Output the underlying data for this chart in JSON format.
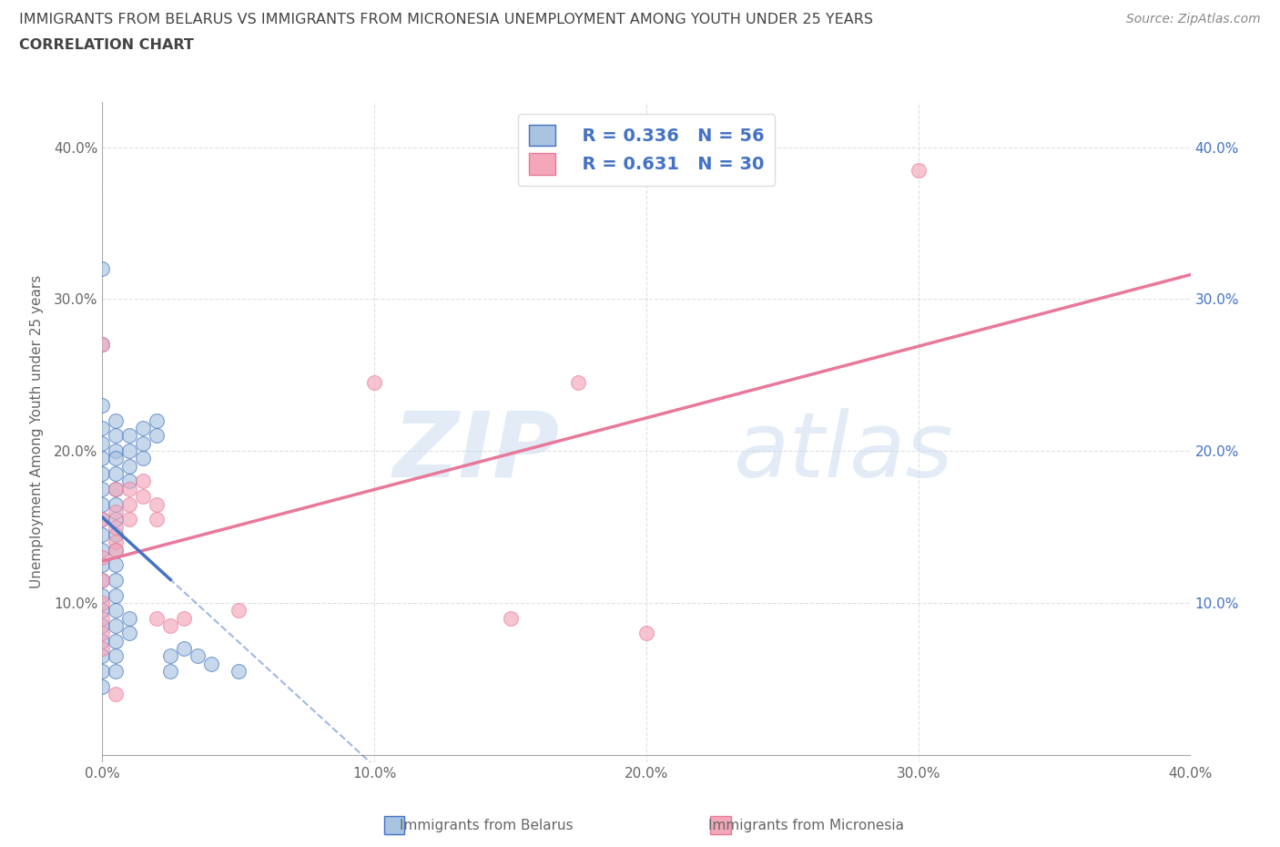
{
  "title_line1": "IMMIGRANTS FROM BELARUS VS IMMIGRANTS FROM MICRONESIA UNEMPLOYMENT AMONG YOUTH UNDER 25 YEARS",
  "title_line2": "CORRELATION CHART",
  "source": "Source: ZipAtlas.com",
  "ylabel": "Unemployment Among Youth under 25 years",
  "xlim": [
    0.0,
    0.4
  ],
  "ylim": [
    -0.005,
    0.43
  ],
  "xticks": [
    0.0,
    0.1,
    0.2,
    0.3,
    0.4
  ],
  "yticks": [
    0.0,
    0.1,
    0.2,
    0.3,
    0.4
  ],
  "xticklabels": [
    "0.0%",
    "10.0%",
    "20.0%",
    "30.0%",
    "40.0%"
  ],
  "yticklabels": [
    "",
    "10.0%",
    "20.0%",
    "30.0%",
    "40.0%"
  ],
  "right_yticklabels": [
    "",
    "10.0%",
    "20.0%",
    "30.0%",
    "40.0%"
  ],
  "belarus_color": "#a8c4e0",
  "micronesia_color": "#f4a7b9",
  "belarus_edge_color": "#4472c4",
  "micronesia_edge_color": "#e8799a",
  "belarus_line_color": "#4472c4",
  "micronesia_line_color": "#e8799a",
  "title_color": "#444444",
  "axis_color": "#666666",
  "right_axis_color": "#4472c4",
  "legend_text_color": "#4472c4",
  "legend_label_belarus": "Immigrants from Belarus",
  "legend_label_micronesia": "Immigrants from Micronesia",
  "legend_r_belarus": "R = 0.336",
  "legend_n_belarus": "N = 56",
  "legend_r_micronesia": "R = 0.631",
  "legend_n_micronesia": "N = 30",
  "source_text": "Source: ZipAtlas.com",
  "watermark_zip": "ZIP",
  "watermark_atlas": "atlas",
  "belarus_scatter": [
    [
      0.0,
      0.32
    ],
    [
      0.0,
      0.27
    ],
    [
      0.0,
      0.23
    ],
    [
      0.0,
      0.215
    ],
    [
      0.0,
      0.205
    ],
    [
      0.0,
      0.195
    ],
    [
      0.0,
      0.185
    ],
    [
      0.0,
      0.175
    ],
    [
      0.0,
      0.165
    ],
    [
      0.0,
      0.155
    ],
    [
      0.0,
      0.145
    ],
    [
      0.0,
      0.135
    ],
    [
      0.0,
      0.125
    ],
    [
      0.0,
      0.115
    ],
    [
      0.0,
      0.105
    ],
    [
      0.0,
      0.095
    ],
    [
      0.0,
      0.085
    ],
    [
      0.0,
      0.075
    ],
    [
      0.0,
      0.065
    ],
    [
      0.0,
      0.055
    ],
    [
      0.0,
      0.045
    ],
    [
      0.005,
      0.22
    ],
    [
      0.005,
      0.21
    ],
    [
      0.005,
      0.2
    ],
    [
      0.005,
      0.195
    ],
    [
      0.005,
      0.185
    ],
    [
      0.005,
      0.175
    ],
    [
      0.005,
      0.165
    ],
    [
      0.005,
      0.155
    ],
    [
      0.005,
      0.145
    ],
    [
      0.005,
      0.135
    ],
    [
      0.005,
      0.125
    ],
    [
      0.005,
      0.115
    ],
    [
      0.005,
      0.105
    ],
    [
      0.005,
      0.095
    ],
    [
      0.005,
      0.085
    ],
    [
      0.005,
      0.075
    ],
    [
      0.005,
      0.065
    ],
    [
      0.005,
      0.055
    ],
    [
      0.01,
      0.21
    ],
    [
      0.01,
      0.2
    ],
    [
      0.01,
      0.19
    ],
    [
      0.01,
      0.18
    ],
    [
      0.01,
      0.09
    ],
    [
      0.01,
      0.08
    ],
    [
      0.015,
      0.215
    ],
    [
      0.015,
      0.205
    ],
    [
      0.015,
      0.195
    ],
    [
      0.02,
      0.22
    ],
    [
      0.02,
      0.21
    ],
    [
      0.025,
      0.065
    ],
    [
      0.025,
      0.055
    ],
    [
      0.03,
      0.07
    ],
    [
      0.035,
      0.065
    ],
    [
      0.04,
      0.06
    ],
    [
      0.05,
      0.055
    ]
  ],
  "micronesia_scatter": [
    [
      0.0,
      0.27
    ],
    [
      0.0,
      0.155
    ],
    [
      0.0,
      0.13
    ],
    [
      0.0,
      0.115
    ],
    [
      0.0,
      0.1
    ],
    [
      0.0,
      0.09
    ],
    [
      0.0,
      0.08
    ],
    [
      0.0,
      0.07
    ],
    [
      0.005,
      0.175
    ],
    [
      0.005,
      0.16
    ],
    [
      0.005,
      0.15
    ],
    [
      0.005,
      0.14
    ],
    [
      0.005,
      0.135
    ],
    [
      0.005,
      0.04
    ],
    [
      0.01,
      0.175
    ],
    [
      0.01,
      0.165
    ],
    [
      0.01,
      0.155
    ],
    [
      0.015,
      0.18
    ],
    [
      0.015,
      0.17
    ],
    [
      0.02,
      0.165
    ],
    [
      0.02,
      0.155
    ],
    [
      0.02,
      0.09
    ],
    [
      0.025,
      0.085
    ],
    [
      0.03,
      0.09
    ],
    [
      0.05,
      0.095
    ],
    [
      0.1,
      0.245
    ],
    [
      0.15,
      0.09
    ],
    [
      0.175,
      0.245
    ],
    [
      0.2,
      0.08
    ],
    [
      0.3,
      0.385
    ]
  ],
  "background_color": "#ffffff",
  "grid_color": "#cccccc",
  "fig_bg_color": "#ffffff",
  "belarus_reg_line": [
    0.0,
    0.025
  ],
  "belarus_reg_dashed": [
    0.0,
    0.3
  ]
}
